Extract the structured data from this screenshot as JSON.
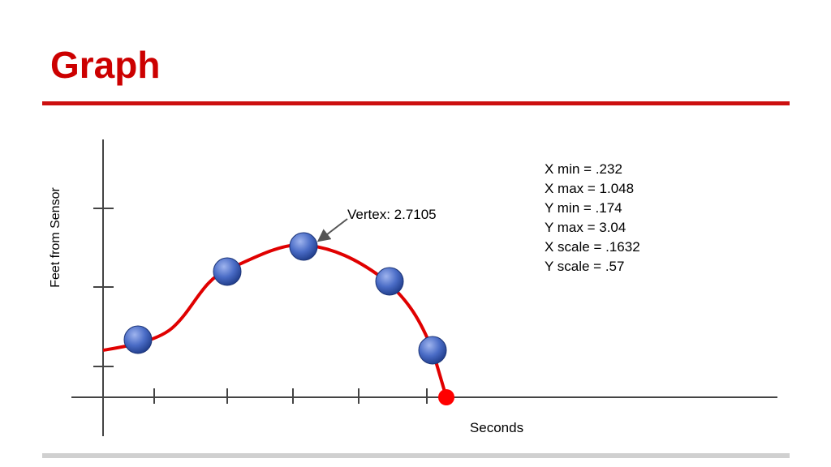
{
  "header": {
    "title": "Graph"
  },
  "graph": {
    "y_label": "Feet from Sensor",
    "x_label": "Seconds",
    "annotation": "Vertex: 2.7105",
    "notes": [
      "X min = .232",
      "X max = 1.048",
      "Y min = .174",
      "Y max = 3.04",
      "X scale = .1632",
      "Y scale = .57"
    ]
  }
}
